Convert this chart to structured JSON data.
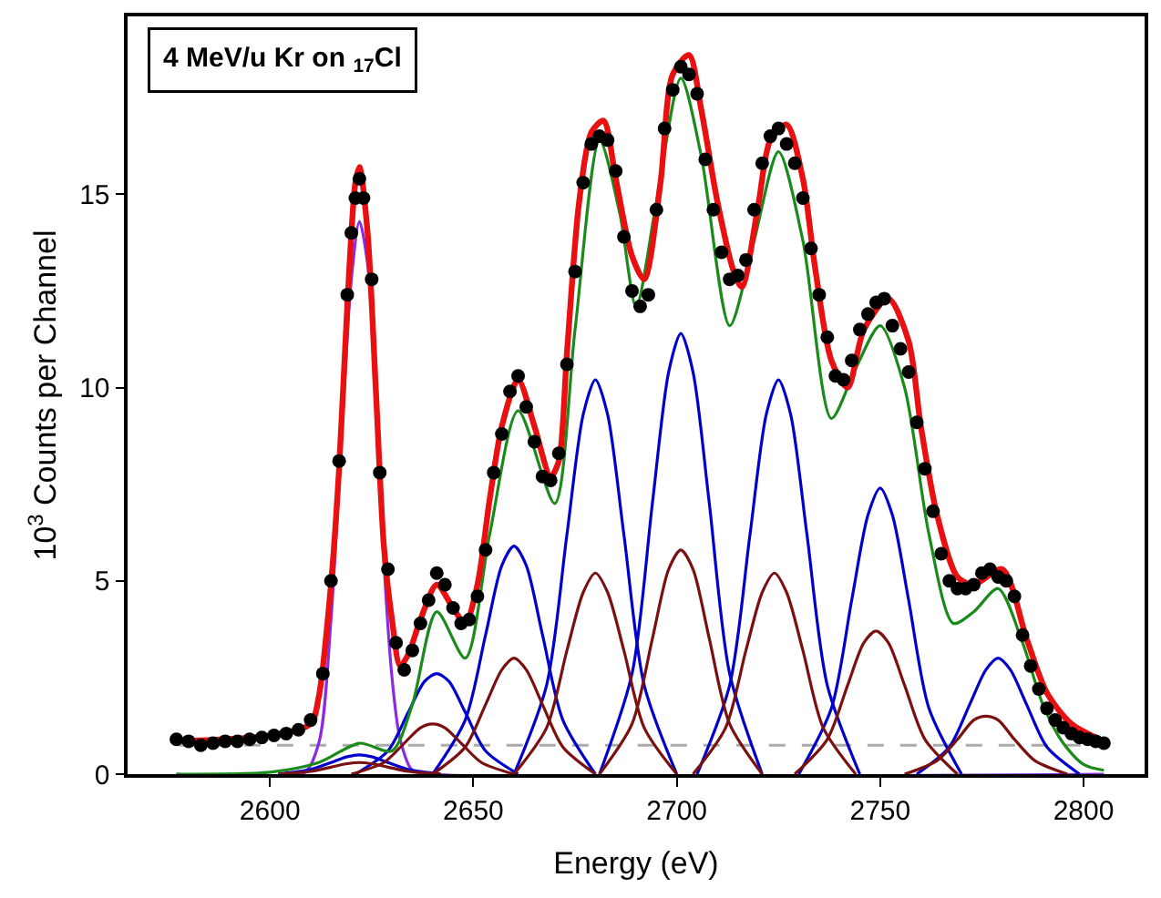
{
  "chart_data": {
    "type": "line",
    "xlabel": "Energy (eV)",
    "ylabel": "10$^{3}$ Counts per Channel",
    "annotations": [
      "4 MeV/u Kr on $_{17}$Cl"
    ],
    "xlim": [
      2565,
      2815
    ],
    "xticks": [
      2600,
      2650,
      2700,
      2750,
      2800
    ],
    "ylim": [
      0,
      19.6
    ],
    "yticks": [
      0,
      5,
      10,
      15
    ],
    "grid": false,
    "ref_lines": [
      {
        "axis": "y",
        "value": 0.75,
        "color": "#aaaaaa",
        "line_style": "dashed"
      }
    ],
    "series": [
      {
        "color": "#8a2be2",
        "x": [
          2577,
          2608,
          2612,
          2615,
          2618,
          2620,
          2622,
          2624,
          2626,
          2628,
          2630,
          2632,
          2635,
          2640,
          2805
        ],
        "values": [
          0,
          0,
          0.8,
          4,
          9.5,
          12.8,
          14.3,
          13.2,
          10,
          5.5,
          2.5,
          0.9,
          0.1,
          0,
          0
        ]
      },
      {
        "color": "#0000cc",
        "x": [
          2602,
          2610,
          2615,
          2619,
          2622,
          2625,
          2629,
          2634,
          2642
        ],
        "values": [
          0,
          0.12,
          0.3,
          0.45,
          0.5,
          0.45,
          0.3,
          0.12,
          0
        ]
      },
      {
        "color": "#0000cc",
        "x": [
          2621,
          2629,
          2634,
          2638,
          2641,
          2644,
          2648,
          2653,
          2661
        ],
        "values": [
          0,
          0.6,
          1.6,
          2.4,
          2.6,
          2.4,
          1.6,
          0.6,
          0
        ]
      },
      {
        "color": "#0000cc",
        "x": [
          2640,
          2648,
          2653,
          2657,
          2660,
          2663,
          2667,
          2672,
          2680
        ],
        "values": [
          0,
          1.4,
          3.6,
          5.4,
          5.9,
          5.4,
          3.6,
          1.4,
          0
        ]
      },
      {
        "color": "#0000cc",
        "x": [
          2660,
          2668,
          2673,
          2677,
          2680,
          2683,
          2687,
          2692,
          2700
        ],
        "values": [
          0,
          2.3,
          6.2,
          9.3,
          10.2,
          9.3,
          6.2,
          2.3,
          0
        ]
      },
      {
        "color": "#0000cc",
        "x": [
          2681,
          2689,
          2694,
          2698,
          2701,
          2704,
          2708,
          2713,
          2721
        ],
        "values": [
          0,
          2.6,
          7.0,
          10.4,
          11.4,
          10.4,
          7.0,
          2.6,
          0
        ]
      },
      {
        "color": "#0000cc",
        "x": [
          2705,
          2713,
          2718,
          2722,
          2725,
          2728,
          2732,
          2737,
          2745
        ],
        "values": [
          0,
          2.3,
          6.2,
          9.3,
          10.2,
          9.3,
          6.2,
          2.3,
          0
        ]
      },
      {
        "color": "#0000cc",
        "x": [
          2730,
          2738,
          2743,
          2747,
          2750,
          2753,
          2757,
          2762,
          2770
        ],
        "values": [
          0,
          1.7,
          4.5,
          6.7,
          7.4,
          6.7,
          4.5,
          1.7,
          0
        ]
      },
      {
        "color": "#0000cc",
        "x": [
          2759,
          2767,
          2772,
          2776,
          2779,
          2782,
          2786,
          2791,
          2799
        ],
        "values": [
          0,
          0.7,
          1.8,
          2.7,
          3.0,
          2.7,
          1.8,
          0.7,
          0
        ]
      },
      {
        "color": "#7a1010",
        "x": [
          2602,
          2610,
          2615,
          2619,
          2622,
          2625,
          2629,
          2634,
          2642
        ],
        "values": [
          0,
          0.07,
          0.18,
          0.27,
          0.3,
          0.27,
          0.18,
          0.07,
          0
        ]
      },
      {
        "color": "#7a1010",
        "x": [
          2620,
          2628,
          2633,
          2637,
          2640,
          2643,
          2647,
          2652,
          2660
        ],
        "values": [
          0,
          0.3,
          0.8,
          1.2,
          1.3,
          1.2,
          0.8,
          0.3,
          0
        ]
      },
      {
        "color": "#7a1010",
        "x": [
          2640,
          2648,
          2653,
          2657,
          2660,
          2663,
          2667,
          2672,
          2680
        ],
        "values": [
          0,
          0.7,
          1.8,
          2.7,
          3.0,
          2.7,
          1.8,
          0.7,
          0
        ]
      },
      {
        "color": "#7a1010",
        "x": [
          2660,
          2668,
          2673,
          2677,
          2680,
          2683,
          2687,
          2692,
          2700
        ],
        "values": [
          0,
          1.2,
          3.2,
          4.7,
          5.2,
          4.7,
          3.2,
          1.2,
          0
        ]
      },
      {
        "color": "#7a1010",
        "x": [
          2681,
          2689,
          2694,
          2698,
          2701,
          2704,
          2708,
          2713,
          2721
        ],
        "values": [
          0,
          1.3,
          3.5,
          5.3,
          5.8,
          5.3,
          3.5,
          1.3,
          0
        ]
      },
      {
        "color": "#7a1010",
        "x": [
          2704,
          2712,
          2717,
          2721,
          2724,
          2727,
          2731,
          2736,
          2744
        ],
        "values": [
          0,
          1.2,
          3.2,
          4.7,
          5.2,
          4.7,
          3.2,
          1.2,
          0
        ]
      },
      {
        "color": "#7a1010",
        "x": [
          2729,
          2737,
          2742,
          2746,
          2749,
          2752,
          2756,
          2761,
          2769
        ],
        "values": [
          0,
          0.9,
          2.3,
          3.4,
          3.7,
          3.4,
          2.3,
          0.9,
          0
        ]
      },
      {
        "color": "#7a1010",
        "x": [
          2756,
          2764,
          2769,
          2773,
          2776,
          2779,
          2783,
          2788,
          2796
        ],
        "values": [
          0,
          0.35,
          0.9,
          1.4,
          1.5,
          1.4,
          0.9,
          0.35,
          0
        ]
      },
      {
        "color": "#1a8a1a",
        "x": [
          2577,
          2600,
          2612,
          2622,
          2630,
          2635,
          2641,
          2648,
          2654,
          2661,
          2670,
          2675,
          2681,
          2686,
          2690,
          2695,
          2701,
          2706,
          2713,
          2719,
          2725,
          2731,
          2738,
          2744,
          2750,
          2756,
          2762,
          2768,
          2773,
          2779,
          2785,
          2790,
          2795,
          2800,
          2805
        ],
        "values": [
          0,
          0.05,
          0.3,
          0.8,
          0.6,
          1.8,
          4.2,
          3.0,
          6.2,
          9.4,
          7.0,
          11.5,
          16.4,
          14.5,
          12.1,
          14.8,
          18.0,
          16.0,
          11.6,
          13.8,
          16.1,
          13.8,
          9.2,
          10.5,
          11.6,
          10.0,
          6.2,
          3.9,
          4.2,
          4.8,
          3.4,
          1.8,
          0.8,
          0.25,
          0.1
        ]
      },
      {
        "color": "#e81010",
        "x": [
          2577,
          2600,
          2610,
          2612,
          2615,
          2617,
          2619,
          2621,
          2622,
          2624,
          2626,
          2628,
          2630,
          2632,
          2634,
          2637,
          2641,
          2645,
          2648,
          2651,
          2654,
          2657,
          2661,
          2665,
          2669,
          2671,
          2673,
          2676,
          2679,
          2682,
          2685,
          2689,
          2692,
          2696,
          2699,
          2703,
          2706,
          2710,
          2714,
          2716,
          2720,
          2723,
          2727,
          2731,
          2734,
          2738,
          2742,
          2746,
          2752,
          2757,
          2760,
          2764,
          2769,
          2773,
          2780,
          2786,
          2791,
          2797,
          2805
        ],
        "values": [
          0.85,
          1.0,
          1.3,
          2.0,
          4.9,
          7.9,
          12.1,
          15.3,
          15.7,
          14.0,
          10.0,
          5.9,
          4.0,
          2.8,
          3.1,
          4.0,
          4.9,
          4.3,
          3.9,
          4.9,
          7.1,
          9.0,
          10.2,
          9.0,
          7.7,
          8.1,
          10.9,
          14.8,
          16.6,
          16.9,
          15.4,
          13.4,
          12.8,
          15.3,
          18.1,
          18.6,
          17.2,
          14.8,
          13.0,
          12.6,
          14.7,
          16.4,
          16.8,
          15.4,
          13.1,
          10.7,
          10.0,
          11.5,
          12.3,
          11.2,
          9.0,
          6.7,
          5.1,
          4.9,
          5.3,
          3.5,
          2.1,
          1.3,
          0.85
        ]
      },
      {
        "type": "scatter",
        "color": "#000000",
        "marker": "circle",
        "x": [
          2577,
          2580,
          2583,
          2586,
          2589,
          2592,
          2595,
          2598,
          2601,
          2604,
          2607,
          2610,
          2613,
          2615,
          2617,
          2619,
          2620,
          2621,
          2622,
          2623,
          2625,
          2627,
          2629,
          2631,
          2633,
          2635,
          2637,
          2639,
          2641,
          2643,
          2645,
          2647,
          2649,
          2651,
          2653,
          2655,
          2657,
          2659,
          2661,
          2663,
          2665,
          2667,
          2669,
          2671,
          2673,
          2675,
          2677,
          2679,
          2681,
          2683,
          2685,
          2687,
          2689,
          2691,
          2693,
          2695,
          2697,
          2699,
          2701,
          2703,
          2705,
          2707,
          2709,
          2711,
          2713,
          2715,
          2717,
          2719,
          2721,
          2723,
          2725,
          2727,
          2729,
          2731,
          2733,
          2735,
          2737,
          2739,
          2741,
          2743,
          2745,
          2747,
          2749,
          2751,
          2753,
          2755,
          2757,
          2759,
          2761,
          2763,
          2765,
          2767,
          2769,
          2771,
          2773,
          2775,
          2777,
          2779,
          2781,
          2783,
          2785,
          2787,
          2789,
          2791,
          2793,
          2795,
          2797,
          2799,
          2801,
          2803,
          2805
        ],
        "values": [
          0.9,
          0.85,
          0.75,
          0.8,
          0.85,
          0.85,
          0.9,
          0.95,
          1.0,
          1.05,
          1.15,
          1.4,
          2.6,
          5.0,
          8.1,
          12.4,
          14.0,
          14.9,
          15.4,
          14.9,
          12.8,
          7.8,
          5.3,
          3.4,
          2.7,
          3.2,
          3.9,
          4.5,
          5.2,
          4.9,
          4.3,
          3.9,
          4.0,
          4.6,
          5.8,
          7.8,
          8.8,
          9.9,
          10.3,
          9.5,
          8.6,
          7.7,
          7.6,
          8.3,
          10.6,
          13.0,
          15.3,
          16.3,
          16.5,
          16.4,
          15.6,
          13.9,
          12.5,
          12.1,
          12.4,
          14.6,
          16.7,
          17.7,
          18.3,
          18.1,
          17.6,
          15.9,
          14.6,
          13.5,
          12.8,
          12.9,
          13.3,
          14.6,
          15.8,
          16.5,
          16.7,
          16.3,
          15.8,
          14.9,
          13.6,
          12.4,
          11.3,
          10.3,
          10.2,
          10.7,
          11.5,
          11.9,
          12.2,
          12.3,
          11.6,
          11.0,
          10.4,
          9.1,
          7.9,
          6.8,
          5.7,
          5.0,
          4.8,
          4.8,
          4.9,
          5.2,
          5.3,
          5.1,
          5.0,
          4.6,
          3.6,
          2.8,
          2.2,
          1.7,
          1.4,
          1.2,
          1.05,
          0.95,
          0.9,
          0.85,
          0.8
        ]
      }
    ]
  }
}
